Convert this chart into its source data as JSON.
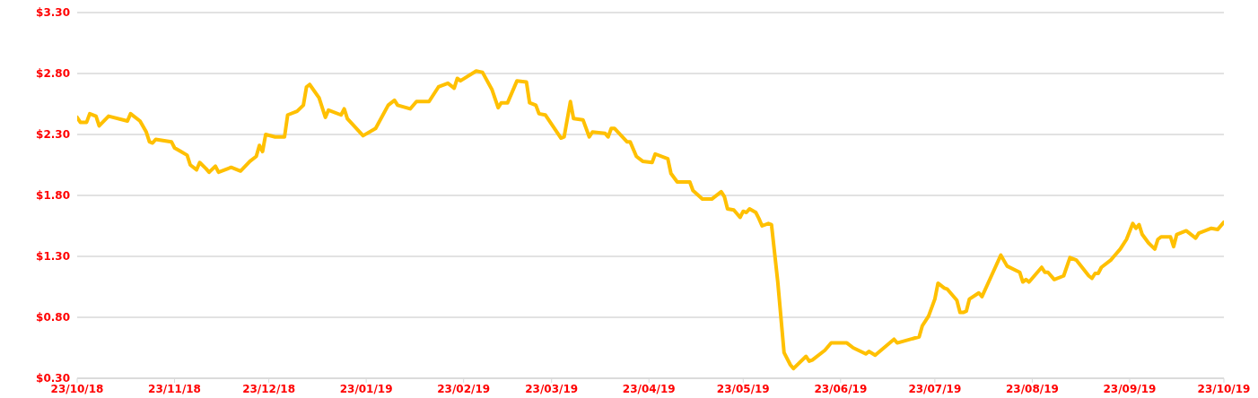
{
  "chart_data": {
    "type": "line",
    "x": [
      "2018-10-23",
      "2018-10-24",
      "2018-10-26",
      "2018-10-27",
      "2018-10-29",
      "2018-10-30",
      "2018-11-02",
      "2018-11-08",
      "2018-11-09",
      "2018-11-12",
      "2018-11-14",
      "2018-11-15",
      "2018-11-16",
      "2018-11-17",
      "2018-11-22",
      "2018-11-23",
      "2018-11-25",
      "2018-11-27",
      "2018-11-28",
      "2018-11-30",
      "2018-12-01",
      "2018-12-03",
      "2018-12-04",
      "2018-12-06",
      "2018-12-07",
      "2018-12-11",
      "2018-12-14",
      "2018-12-17",
      "2018-12-19",
      "2018-12-20",
      "2018-12-21",
      "2018-12-22",
      "2018-12-25",
      "2018-12-28",
      "2018-12-29",
      "2019-01-01",
      "2019-01-03",
      "2019-01-04",
      "2019-01-05",
      "2019-01-08",
      "2019-01-10",
      "2019-01-11",
      "2019-01-15",
      "2019-01-16",
      "2019-01-17",
      "2019-01-22",
      "2019-01-26",
      "2019-01-30",
      "2019-02-01",
      "2019-02-02",
      "2019-02-06",
      "2019-02-08",
      "2019-02-12",
      "2019-02-15",
      "2019-02-18",
      "2019-02-20",
      "2019-02-21",
      "2019-02-22",
      "2019-02-27",
      "2019-03-01",
      "2019-03-04",
      "2019-03-06",
      "2019-03-07",
      "2019-03-09",
      "2019-03-12",
      "2019-03-15",
      "2019-03-16",
      "2019-03-18",
      "2019-03-19",
      "2019-03-21",
      "2019-03-26",
      "2019-03-27",
      "2019-03-29",
      "2019-03-30",
      "2019-04-02",
      "2019-04-04",
      "2019-04-05",
      "2019-04-09",
      "2019-04-10",
      "2019-04-11",
      "2019-04-12",
      "2019-04-16",
      "2019-04-17",
      "2019-04-19",
      "2019-04-21",
      "2019-04-24",
      "2019-04-25",
      "2019-04-29",
      "2019-04-30",
      "2019-05-02",
      "2019-05-06",
      "2019-05-07",
      "2019-05-10",
      "2019-05-13",
      "2019-05-16",
      "2019-05-17",
      "2019-05-18",
      "2019-05-20",
      "2019-05-22",
      "2019-05-23",
      "2019-05-24",
      "2019-05-25",
      "2019-05-27",
      "2019-05-28",
      "2019-05-29",
      "2019-05-31",
      "2019-06-01",
      "2019-06-03",
      "2019-06-05",
      "2019-06-07",
      "2019-06-08",
      "2019-06-12",
      "2019-06-13",
      "2019-06-14",
      "2019-06-18",
      "2019-06-20",
      "2019-06-25",
      "2019-06-27",
      "2019-07-01",
      "2019-07-02",
      "2019-07-04",
      "2019-07-10",
      "2019-07-11",
      "2019-07-18",
      "2019-07-19",
      "2019-07-21",
      "2019-07-23",
      "2019-07-24",
      "2019-07-26",
      "2019-07-27",
      "2019-07-30",
      "2019-07-31",
      "2019-08-01",
      "2019-08-02",
      "2019-08-03",
      "2019-08-06",
      "2019-08-07",
      "2019-08-10",
      "2019-08-13",
      "2019-08-15",
      "2019-08-19",
      "2019-08-20",
      "2019-08-21",
      "2019-08-22",
      "2019-08-26",
      "2019-08-27",
      "2019-08-28",
      "2019-08-30",
      "2019-09-02",
      "2019-09-04",
      "2019-09-06",
      "2019-09-10",
      "2019-09-11",
      "2019-09-12",
      "2019-09-13",
      "2019-09-14",
      "2019-09-17",
      "2019-09-18",
      "2019-09-20",
      "2019-09-22",
      "2019-09-24",
      "2019-09-25",
      "2019-09-26",
      "2019-09-27",
      "2019-09-29",
      "2019-10-01",
      "2019-10-02",
      "2019-10-03",
      "2019-10-06",
      "2019-10-07",
      "2019-10-08",
      "2019-10-11",
      "2019-10-14",
      "2019-10-15",
      "2019-10-19",
      "2019-10-21",
      "2019-10-23"
    ],
    "series": [
      {
        "color": "#ffc000",
        "values": [
          2.44,
          2.4,
          2.4,
          2.47,
          2.45,
          2.37,
          2.45,
          2.41,
          2.47,
          2.41,
          2.32,
          2.24,
          2.23,
          2.26,
          2.24,
          2.19,
          2.16,
          2.13,
          2.05,
          2.01,
          2.07,
          2.02,
          1.99,
          2.04,
          1.99,
          2.03,
          2.0,
          2.08,
          2.12,
          2.21,
          2.16,
          2.3,
          2.28,
          2.28,
          2.46,
          2.49,
          2.54,
          2.69,
          2.71,
          2.6,
          2.44,
          2.5,
          2.46,
          2.51,
          2.43,
          2.29,
          2.35,
          2.54,
          2.58,
          2.54,
          2.51,
          2.57,
          2.57,
          2.69,
          2.72,
          2.68,
          2.76,
          2.74,
          2.82,
          2.81,
          2.67,
          2.52,
          2.56,
          2.56,
          2.74,
          2.73,
          2.56,
          2.54,
          2.47,
          2.46,
          2.27,
          2.28,
          2.57,
          2.43,
          2.42,
          2.28,
          2.32,
          2.31,
          2.28,
          2.35,
          2.35,
          2.24,
          2.24,
          2.12,
          2.08,
          2.07,
          2.14,
          2.1,
          1.98,
          1.91,
          1.91,
          1.84,
          1.77,
          1.77,
          1.83,
          1.79,
          1.69,
          1.68,
          1.62,
          1.67,
          1.66,
          1.69,
          1.66,
          1.61,
          1.55,
          1.57,
          1.56,
          1.09,
          0.51,
          0.41,
          0.38,
          0.48,
          0.44,
          0.45,
          0.53,
          0.59,
          0.59,
          0.55,
          0.5,
          0.52,
          0.49,
          0.62,
          0.59,
          0.64,
          0.73,
          0.81,
          0.95,
          1.08,
          1.04,
          1.03,
          0.94,
          0.84,
          0.84,
          0.85,
          0.95,
          1.0,
          0.97,
          1.14,
          1.31,
          1.22,
          1.17,
          1.09,
          1.11,
          1.09,
          1.21,
          1.17,
          1.17,
          1.11,
          1.14,
          1.29,
          1.27,
          1.14,
          1.12,
          1.16,
          1.16,
          1.21,
          1.27,
          1.3,
          1.36,
          1.44,
          1.57,
          1.53,
          1.56,
          1.48,
          1.41,
          1.36,
          1.44,
          1.46,
          1.46,
          1.38,
          1.48,
          1.51,
          1.45,
          1.49,
          1.53,
          1.52,
          1.58
        ]
      }
    ],
    "xlim": [
      "2018-10-23",
      "2019-10-23"
    ],
    "xticks": [
      {
        "value": "2018-10-23",
        "label": "23/10/18"
      },
      {
        "value": "2018-11-23",
        "label": "23/11/18"
      },
      {
        "value": "2018-12-23",
        "label": "23/12/18"
      },
      {
        "value": "2019-01-23",
        "label": "23/01/19"
      },
      {
        "value": "2019-02-23",
        "label": "23/02/19"
      },
      {
        "value": "2019-03-23",
        "label": "23/03/19"
      },
      {
        "value": "2019-04-23",
        "label": "23/04/19"
      },
      {
        "value": "2019-05-23",
        "label": "23/05/19"
      },
      {
        "value": "2019-06-23",
        "label": "23/06/19"
      },
      {
        "value": "2019-07-23",
        "label": "23/07/19"
      },
      {
        "value": "2019-08-23",
        "label": "23/08/19"
      },
      {
        "value": "2019-09-23",
        "label": "23/09/19"
      },
      {
        "value": "2019-10-23",
        "label": "23/10/19"
      }
    ],
    "ylim": [
      0.3,
      3.3
    ],
    "yticks": [
      {
        "value": 0.3,
        "label": "$0.30"
      },
      {
        "value": 0.8,
        "label": "$0.80"
      },
      {
        "value": 1.3,
        "label": "$1.30"
      },
      {
        "value": 1.8,
        "label": "$1.80"
      },
      {
        "value": 2.3,
        "label": "$2.30"
      },
      {
        "value": 2.8,
        "label": "$2.80"
      },
      {
        "value": 3.3,
        "label": "$3.30"
      }
    ],
    "grid": "y",
    "marker": "none",
    "line_style": "solid",
    "legend": false
  }
}
